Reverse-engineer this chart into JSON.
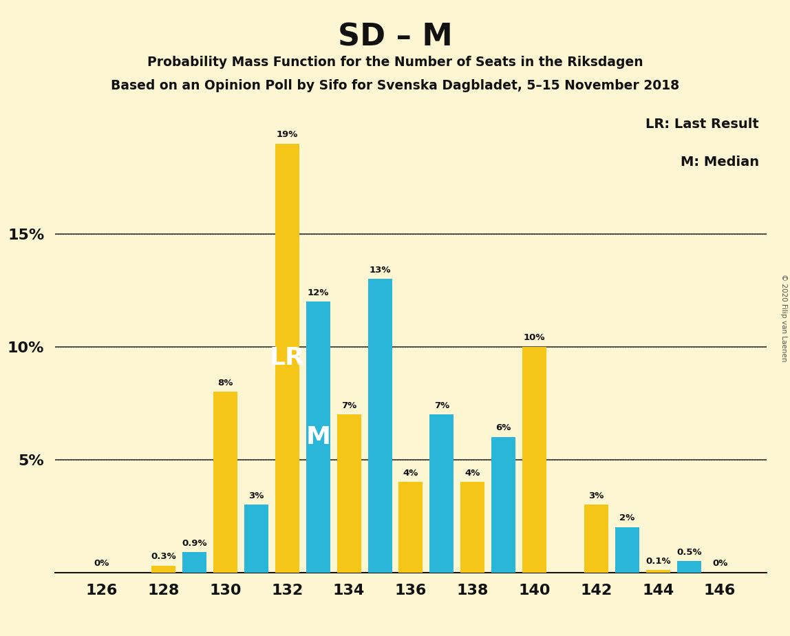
{
  "title": "SD – M",
  "subtitle1": "Probability Mass Function for the Number of Seats in the Riksdagen",
  "subtitle2": "Based on an Opinion Poll by Sifo for Svenska Dagbladet, 5–15 November 2018",
  "copyright": "© 2020 Filip van Laenen",
  "legend_lr": "LR: Last Result",
  "legend_m": "M: Median",
  "lr_label": "LR",
  "m_label": "M",
  "background_color": "#fdf6d3",
  "bar_color_yellow": "#f5c518",
  "bar_color_blue": "#29b6d8",
  "text_color_dark": "#111111",
  "text_color_white": "#ffffff",
  "seats_all": [
    126,
    127,
    128,
    129,
    130,
    131,
    132,
    133,
    134,
    135,
    136,
    137,
    138,
    139,
    140,
    141,
    142,
    143,
    144,
    145,
    146
  ],
  "values_all": [
    0.0,
    0.0,
    0.3,
    0.9,
    8.0,
    3.0,
    19.0,
    12.0,
    7.0,
    13.0,
    4.0,
    7.0,
    4.0,
    6.0,
    10.0,
    0.0,
    3.0,
    2.0,
    0.1,
    0.5,
    0.0
  ],
  "colors_all": [
    "yellow",
    "blue",
    "yellow",
    "blue",
    "yellow",
    "blue",
    "yellow",
    "blue",
    "yellow",
    "blue",
    "yellow",
    "blue",
    "yellow",
    "blue",
    "yellow",
    "blue",
    "yellow",
    "blue",
    "yellow",
    "blue",
    "yellow"
  ],
  "labels_all": [
    "0%",
    "",
    "0.3%",
    "0.9%",
    "8%",
    "3%",
    "19%",
    "12%",
    "7%",
    "13%",
    "4%",
    "7%",
    "4%",
    "6%",
    "10%",
    "",
    "3%",
    "2%",
    "0.1%",
    "0.5%",
    "0%"
  ],
  "show_label": [
    false,
    false,
    true,
    true,
    true,
    true,
    true,
    true,
    true,
    true,
    true,
    true,
    true,
    true,
    true,
    false,
    true,
    true,
    true,
    true,
    true
  ],
  "xtick_seats": [
    126,
    128,
    130,
    132,
    134,
    136,
    138,
    140,
    142,
    144,
    146
  ],
  "lr_seat_idx": 6,
  "m_seat_idx": 7,
  "ylim": [
    0,
    21
  ],
  "yticks": [
    5,
    10,
    15
  ],
  "ytick_labels": [
    "5%",
    "10%",
    "15%"
  ]
}
